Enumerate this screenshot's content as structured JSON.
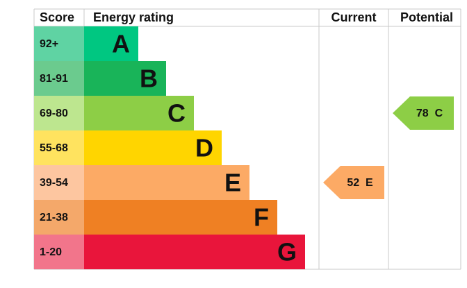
{
  "header": {
    "score": "Score",
    "rating": "Energy rating",
    "current": "Current",
    "potential": "Potential"
  },
  "bands": [
    {
      "range": "92+",
      "letter": "A"
    },
    {
      "range": "81-91",
      "letter": "B"
    },
    {
      "range": "69-80",
      "letter": "C"
    },
    {
      "range": "55-68",
      "letter": "D"
    },
    {
      "range": "39-54",
      "letter": "E"
    },
    {
      "range": "21-38",
      "letter": "F"
    },
    {
      "range": "1-20",
      "letter": "G"
    }
  ],
  "current": {
    "value": 52,
    "letter": "E"
  },
  "potential": {
    "value": 78,
    "letter": "C"
  }
}
